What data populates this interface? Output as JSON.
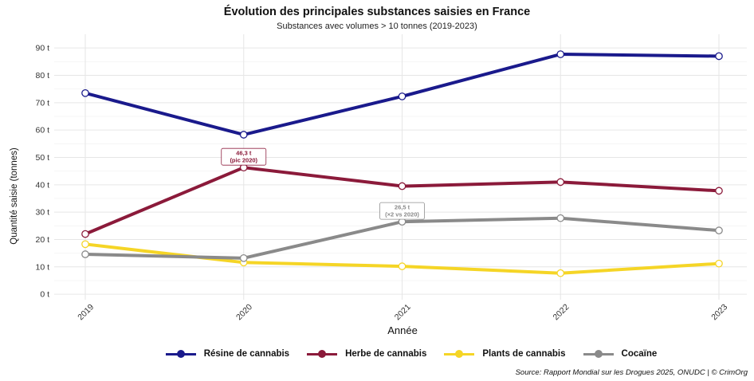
{
  "chart_data": {
    "type": "line",
    "title": "Évolution des principales substances saisies en France",
    "subtitle": "Substances avec volumes > 10 tonnes (2019-2023)",
    "xlabel": "Année",
    "ylabel": "Quantité saisie (tonnes)",
    "categories": [
      "2019",
      "2020",
      "2021",
      "2022",
      "2023"
    ],
    "yticks": [
      "0 t",
      "10 t",
      "20 t",
      "30 t",
      "40 t",
      "50 t",
      "60 t",
      "70 t",
      "80 t",
      "90 t"
    ],
    "ylim": [
      -2,
      95
    ],
    "grid": true,
    "legend_position": "bottom",
    "series": [
      {
        "name": "Résine de cannabis",
        "color": "#1a1a8c",
        "values": [
          73.5,
          58.3,
          72.3,
          87.7,
          87.0
        ]
      },
      {
        "name": "Herbe de cannabis",
        "color": "#8b1a3a",
        "values": [
          22.0,
          46.3,
          39.5,
          41.0,
          37.8
        ]
      },
      {
        "name": "Plants de cannabis",
        "color": "#f5d526",
        "values": [
          18.3,
          11.6,
          10.2,
          7.7,
          11.2
        ]
      },
      {
        "name": "Cocaïne",
        "color": "#8a8a8a",
        "values": [
          14.6,
          13.2,
          26.5,
          27.8,
          23.3
        ]
      }
    ],
    "annotations": [
      {
        "series": "Herbe de cannabis",
        "x": "2020",
        "y": 46.3,
        "line1": "46,3 t",
        "line2": "(pic 2020)",
        "color": "#8b1a3a"
      },
      {
        "series": "Cocaïne",
        "x": "2021",
        "y": 26.5,
        "line1": "26,5 t",
        "line2": "(×2 vs 2020)",
        "color": "#8a8a8a"
      }
    ],
    "source": "Source: Rapport Mondial sur les Drogues 2025, ONUDC | © CrimOrg"
  }
}
